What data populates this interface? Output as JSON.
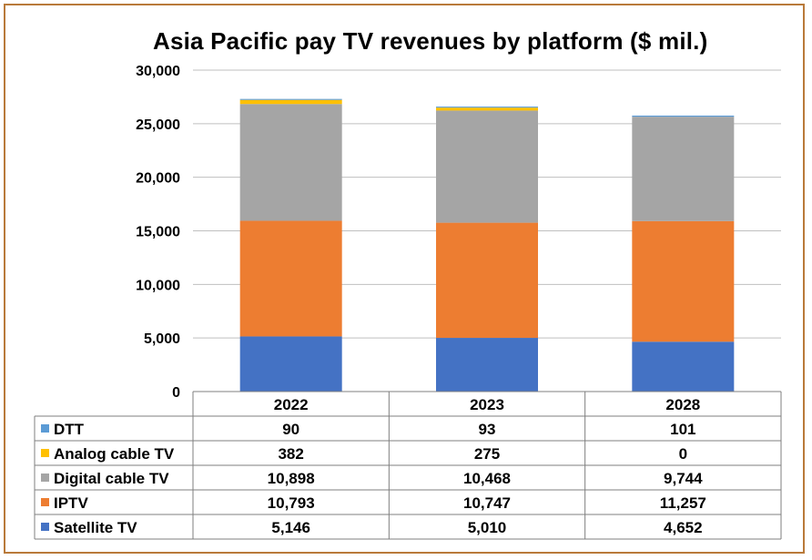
{
  "chart_data": {
    "type": "bar",
    "stacked": true,
    "title": "Asia Pacific pay TV revenues by platform ($ mil.)",
    "xlabel": "",
    "ylabel": "",
    "categories": [
      "2022",
      "2023",
      "2028"
    ],
    "ylim": [
      0,
      30000
    ],
    "y_ticks": [
      "0",
      "5,000",
      "10,000",
      "15,000",
      "20,000",
      "25,000",
      "30,000"
    ],
    "y_tick_values": [
      0,
      5000,
      10000,
      15000,
      20000,
      25000,
      30000
    ],
    "grid": true,
    "legend_placement": "data-table",
    "series": [
      {
        "name": "Satellite TV",
        "color": "#4472c4",
        "values": [
          5146,
          5010,
          4652
        ],
        "labels": [
          "5,146",
          "5,010",
          "4,652"
        ]
      },
      {
        "name": "IPTV",
        "color": "#ed7d31",
        "values": [
          10793,
          10747,
          11257
        ],
        "labels": [
          "10,793",
          "10,747",
          "11,257"
        ]
      },
      {
        "name": "Digital cable TV",
        "color": "#a5a5a5",
        "values": [
          10898,
          10468,
          9744
        ],
        "labels": [
          "10,898",
          "10,468",
          "9,744"
        ]
      },
      {
        "name": "Analog cable TV",
        "color": "#ffc000",
        "values": [
          382,
          275,
          0
        ],
        "labels": [
          "382",
          "275",
          "0"
        ]
      },
      {
        "name": "DTT",
        "color": "#5b9bd5",
        "values": [
          90,
          93,
          101
        ],
        "labels": [
          "90",
          "93",
          "101"
        ]
      }
    ],
    "table_row_order": [
      "DTT",
      "Analog cable TV",
      "Digital cable TV",
      "IPTV",
      "Satellite TV"
    ]
  }
}
